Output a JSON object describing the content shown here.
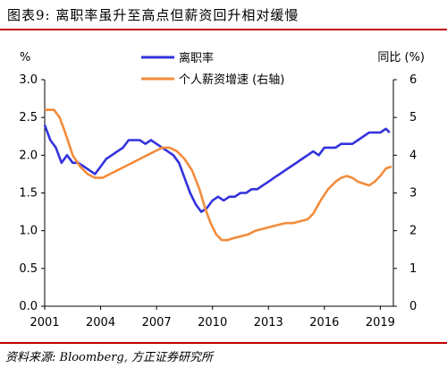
{
  "header": {
    "title": "图表9:  离职率虽升至高点但薪资回升相对缓慢"
  },
  "footer": {
    "source": "资料来源: Bloomberg, 方正证券研究所"
  },
  "colors": {
    "series1": "#3333dd",
    "series2": "#f28c3c",
    "rule": "#c00000",
    "axis": "#000000"
  },
  "chart_data": {
    "type": "line",
    "y_left_label": "%",
    "y_right_label": "同比 (%)",
    "x_ticks": [
      "2001",
      "2004",
      "2007",
      "2010",
      "2013",
      "2016",
      "2019"
    ],
    "x_range": [
      2001,
      2019.7
    ],
    "y_left_ticks": [
      "0.0",
      "0.5",
      "1.0",
      "1.5",
      "2.0",
      "2.5",
      "3.0"
    ],
    "y_left_range": [
      0,
      3
    ],
    "y_right_ticks": [
      "0",
      "1",
      "2",
      "3",
      "4",
      "5",
      "6"
    ],
    "y_right_range": [
      0,
      6
    ],
    "legend_position": "top-center",
    "series": [
      {
        "name": "离职率",
        "axis": "left",
        "points": [
          [
            2001.0,
            2.4
          ],
          [
            2001.3,
            2.2
          ],
          [
            2001.6,
            2.1
          ],
          [
            2001.9,
            1.9
          ],
          [
            2002.2,
            2.0
          ],
          [
            2002.5,
            1.9
          ],
          [
            2002.8,
            1.9
          ],
          [
            2003.1,
            1.85
          ],
          [
            2003.4,
            1.8
          ],
          [
            2003.7,
            1.75
          ],
          [
            2004.0,
            1.85
          ],
          [
            2004.3,
            1.95
          ],
          [
            2004.6,
            2.0
          ],
          [
            2004.9,
            2.05
          ],
          [
            2005.2,
            2.1
          ],
          [
            2005.5,
            2.2
          ],
          [
            2005.8,
            2.2
          ],
          [
            2006.1,
            2.2
          ],
          [
            2006.4,
            2.15
          ],
          [
            2006.7,
            2.2
          ],
          [
            2007.0,
            2.15
          ],
          [
            2007.3,
            2.1
          ],
          [
            2007.6,
            2.05
          ],
          [
            2007.9,
            2.0
          ],
          [
            2008.2,
            1.9
          ],
          [
            2008.5,
            1.7
          ],
          [
            2008.8,
            1.5
          ],
          [
            2009.1,
            1.35
          ],
          [
            2009.4,
            1.25
          ],
          [
            2009.7,
            1.3
          ],
          [
            2010.0,
            1.4
          ],
          [
            2010.3,
            1.45
          ],
          [
            2010.6,
            1.4
          ],
          [
            2010.9,
            1.45
          ],
          [
            2011.2,
            1.45
          ],
          [
            2011.5,
            1.5
          ],
          [
            2011.8,
            1.5
          ],
          [
            2012.1,
            1.55
          ],
          [
            2012.4,
            1.55
          ],
          [
            2012.7,
            1.6
          ],
          [
            2013.0,
            1.65
          ],
          [
            2013.3,
            1.7
          ],
          [
            2013.6,
            1.75
          ],
          [
            2013.9,
            1.8
          ],
          [
            2014.2,
            1.85
          ],
          [
            2014.5,
            1.9
          ],
          [
            2014.8,
            1.95
          ],
          [
            2015.1,
            2.0
          ],
          [
            2015.4,
            2.05
          ],
          [
            2015.7,
            2.0
          ],
          [
            2016.0,
            2.1
          ],
          [
            2016.3,
            2.1
          ],
          [
            2016.6,
            2.1
          ],
          [
            2016.9,
            2.15
          ],
          [
            2017.2,
            2.15
          ],
          [
            2017.5,
            2.15
          ],
          [
            2017.8,
            2.2
          ],
          [
            2018.1,
            2.25
          ],
          [
            2018.4,
            2.3
          ],
          [
            2018.7,
            2.3
          ],
          [
            2019.0,
            2.3
          ],
          [
            2019.3,
            2.35
          ],
          [
            2019.5,
            2.3
          ]
        ]
      },
      {
        "name": "个人薪资增速 (右轴)",
        "axis": "right",
        "points": [
          [
            2001.0,
            5.2
          ],
          [
            2001.5,
            5.2
          ],
          [
            2001.8,
            5.0
          ],
          [
            2002.1,
            4.6
          ],
          [
            2002.5,
            4.0
          ],
          [
            2002.9,
            3.7
          ],
          [
            2003.3,
            3.5
          ],
          [
            2003.7,
            3.4
          ],
          [
            2004.1,
            3.4
          ],
          [
            2004.5,
            3.5
          ],
          [
            2004.9,
            3.6
          ],
          [
            2005.3,
            3.7
          ],
          [
            2005.7,
            3.8
          ],
          [
            2006.1,
            3.9
          ],
          [
            2006.5,
            4.0
          ],
          [
            2006.9,
            4.1
          ],
          [
            2007.3,
            4.2
          ],
          [
            2007.7,
            4.2
          ],
          [
            2008.1,
            4.1
          ],
          [
            2008.5,
            3.9
          ],
          [
            2008.9,
            3.6
          ],
          [
            2009.3,
            3.1
          ],
          [
            2009.6,
            2.6
          ],
          [
            2009.9,
            2.2
          ],
          [
            2010.2,
            1.9
          ],
          [
            2010.5,
            1.75
          ],
          [
            2010.8,
            1.75
          ],
          [
            2011.1,
            1.8
          ],
          [
            2011.5,
            1.85
          ],
          [
            2011.9,
            1.9
          ],
          [
            2012.3,
            2.0
          ],
          [
            2012.7,
            2.05
          ],
          [
            2013.1,
            2.1
          ],
          [
            2013.5,
            2.15
          ],
          [
            2013.9,
            2.2
          ],
          [
            2014.3,
            2.2
          ],
          [
            2014.7,
            2.25
          ],
          [
            2015.1,
            2.3
          ],
          [
            2015.4,
            2.45
          ],
          [
            2015.8,
            2.8
          ],
          [
            2016.2,
            3.1
          ],
          [
            2016.6,
            3.3
          ],
          [
            2016.9,
            3.4
          ],
          [
            2017.2,
            3.45
          ],
          [
            2017.5,
            3.4
          ],
          [
            2017.8,
            3.3
          ],
          [
            2018.1,
            3.25
          ],
          [
            2018.4,
            3.2
          ],
          [
            2018.7,
            3.3
          ],
          [
            2019.0,
            3.45
          ],
          [
            2019.3,
            3.65
          ],
          [
            2019.6,
            3.7
          ]
        ]
      }
    ]
  }
}
